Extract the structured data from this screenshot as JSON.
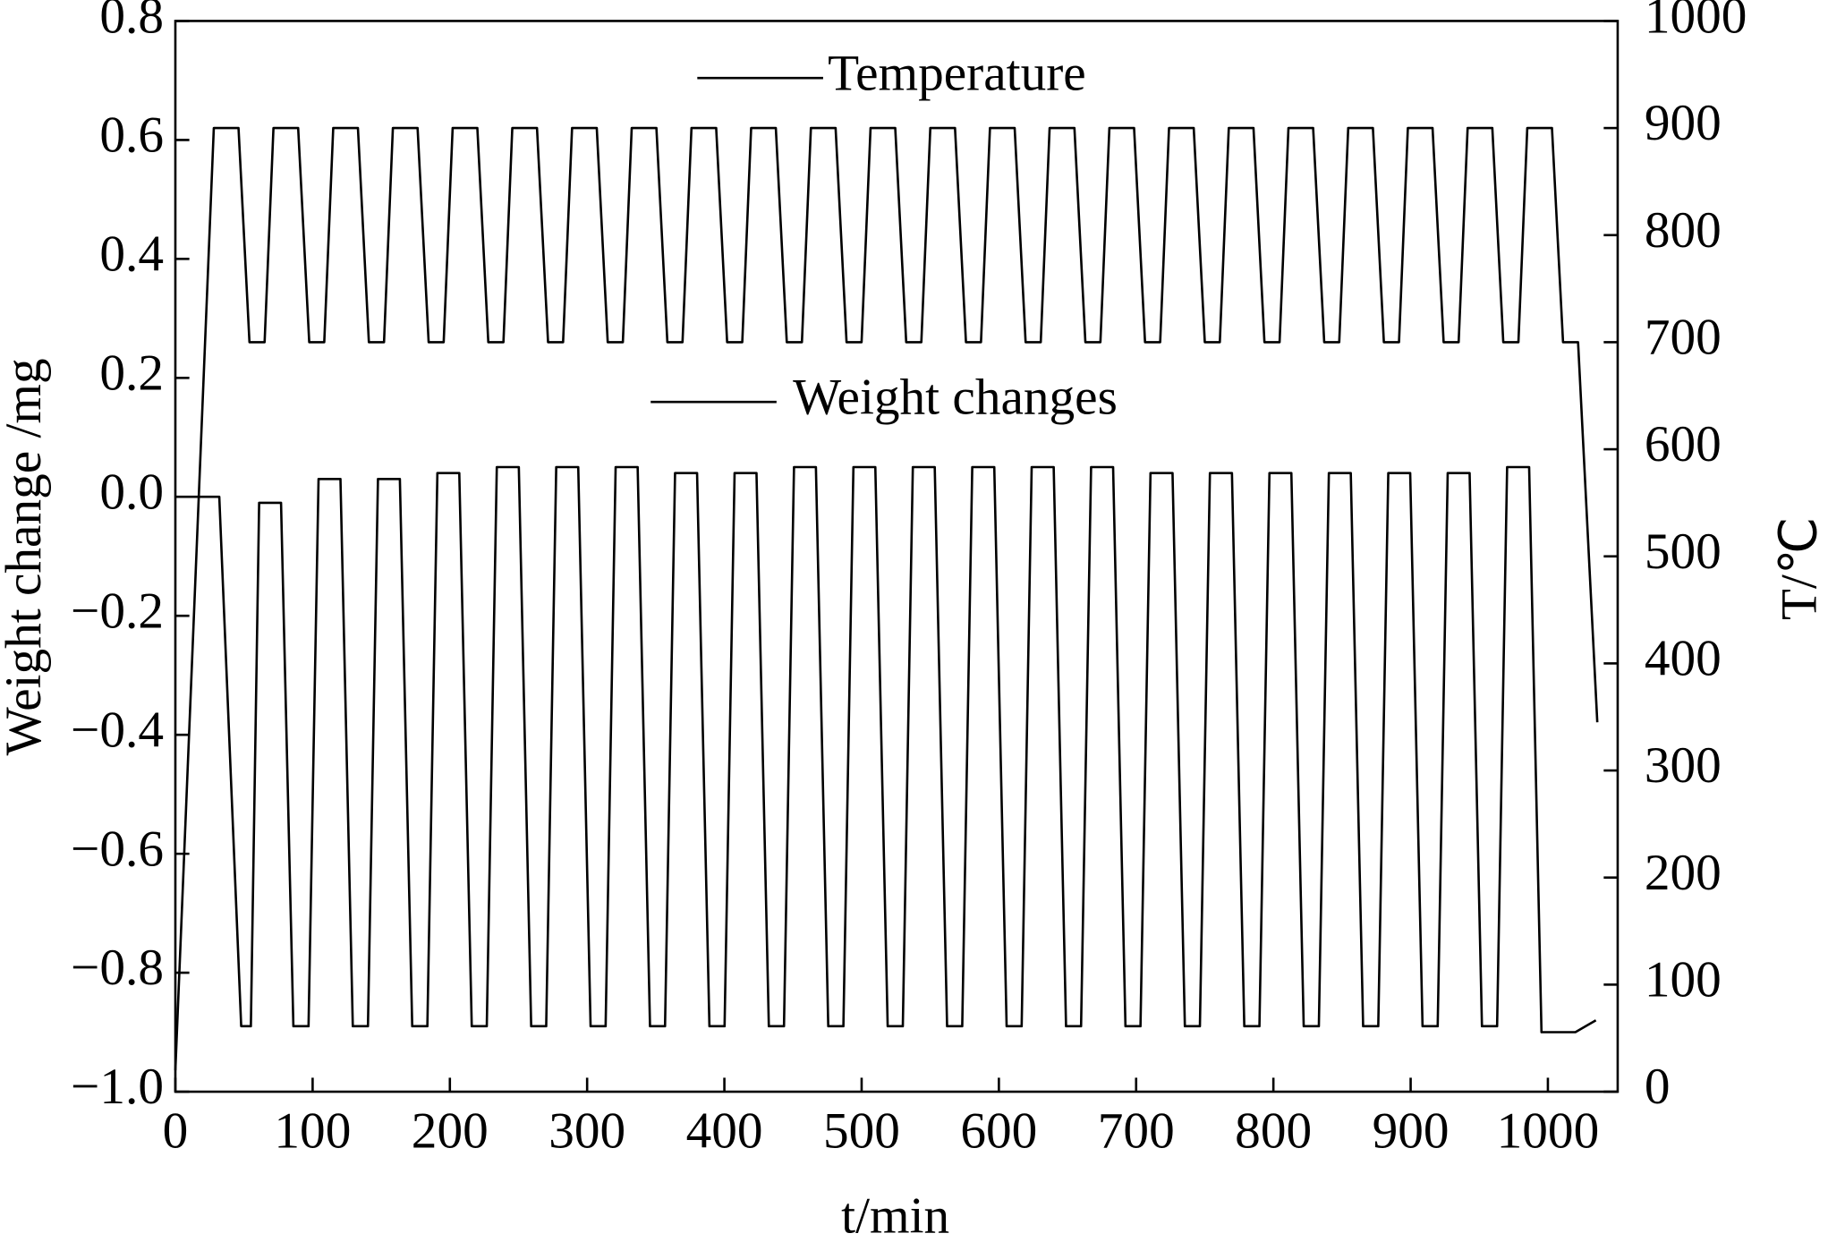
{
  "chart_data": {
    "type": "line",
    "xlabel": "t/min",
    "ylabel": "Weight change /mg",
    "y2label": "T/℃",
    "xlim": [
      0,
      1050
    ],
    "xticks": [
      0,
      100,
      200,
      300,
      400,
      500,
      600,
      700,
      800,
      900,
      1000
    ],
    "ylim": [
      -1.0,
      0.8
    ],
    "yticks": [
      {
        "value": -1.0,
        "label": "−1.0"
      },
      {
        "value": -0.8,
        "label": "−0.8"
      },
      {
        "value": -0.6,
        "label": "−0.6"
      },
      {
        "value": -0.4,
        "label": "−0.4"
      },
      {
        "value": -0.2,
        "label": "−0.2"
      },
      {
        "value": 0,
        "label": "0.0"
      },
      0.2,
      0.4,
      0.6,
      0.8
    ],
    "y2lim": [
      0,
      1000
    ],
    "y2ticks": [
      0,
      100,
      200,
      300,
      400,
      500,
      600,
      700,
      800,
      900,
      1000
    ],
    "grid": false,
    "series": [
      {
        "name": "Temperature",
        "color": "#000000",
        "axis": "y2",
        "x": [
          0,
          28,
          46,
          54,
          65,
          71.5,
          89.5,
          97.5,
          108.5,
          115,
          133,
          141,
          152,
          158.5,
          176.5,
          184.5,
          195.5,
          202,
          220,
          228,
          239,
          245.5,
          263.5,
          271.5,
          282.5,
          289,
          307,
          315,
          326,
          332.5,
          350.5,
          358.5,
          369.5,
          376,
          394,
          402,
          413,
          419.5,
          437.5,
          445.5,
          456.5,
          463,
          481,
          489,
          500,
          506.5,
          524.5,
          532.5,
          543.5,
          550,
          568,
          576,
          587,
          593.5,
          611.5,
          619.5,
          630.5,
          637,
          655,
          663,
          674,
          680.5,
          698.5,
          706.5,
          717.5,
          724,
          742,
          750,
          761,
          767.5,
          785.5,
          793.5,
          804.5,
          811,
          829,
          837,
          848,
          854.5,
          872.5,
          880.5,
          891.5,
          898,
          916,
          924,
          935,
          941.5,
          959.5,
          967.5,
          978.5,
          985,
          1003,
          1011,
          1022,
          1036
        ],
        "values": [
          20,
          900,
          900,
          700,
          700,
          900,
          900,
          700,
          700,
          900,
          900,
          700,
          700,
          900,
          900,
          700,
          700,
          900,
          900,
          700,
          700,
          900,
          900,
          700,
          700,
          900,
          900,
          700,
          700,
          900,
          900,
          700,
          700,
          900,
          900,
          700,
          700,
          900,
          900,
          700,
          700,
          900,
          900,
          700,
          700,
          900,
          900,
          700,
          700,
          900,
          900,
          700,
          700,
          900,
          900,
          700,
          700,
          900,
          900,
          700,
          700,
          900,
          900,
          700,
          700,
          900,
          900,
          700,
          700,
          900,
          900,
          700,
          700,
          900,
          900,
          700,
          700,
          900,
          900,
          700,
          700,
          900,
          900,
          700,
          700,
          900,
          900,
          700,
          700,
          900,
          900,
          700,
          700,
          345
        ]
      },
      {
        "name": "Weight changes",
        "color": "#000000",
        "axis": "y",
        "x": [
          0,
          32,
          48,
          55,
          61,
          77,
          86,
          97,
          104.3,
          120.3,
          129.3,
          140.3,
          147.6,
          163.6,
          172.6,
          183.6,
          190.9,
          206.9,
          215.9,
          226.9,
          234.2,
          250.2,
          259.2,
          270.2,
          277.5,
          293.5,
          302.5,
          313.5,
          320.8,
          336.8,
          345.8,
          356.8,
          364.1,
          380.1,
          389.1,
          400.1,
          407.4,
          423.4,
          432.4,
          443.4,
          450.7,
          466.7,
          475.7,
          486.7,
          494,
          510,
          519,
          530,
          537.3,
          553.3,
          562.3,
          573.3,
          580.6,
          596.6,
          605.6,
          616.6,
          623.9,
          639.9,
          648.9,
          659.9,
          667.2,
          683.2,
          692.2,
          703.2,
          710.5,
          726.5,
          735.5,
          746.5,
          753.8,
          769.8,
          778.8,
          789.8,
          797.1,
          813.1,
          822.1,
          833.1,
          840.4,
          856.4,
          865.4,
          876.4,
          883.7,
          899.7,
          908.7,
          919.7,
          927,
          943,
          952,
          963,
          970.3,
          986.3,
          995.3,
          1020,
          1035
        ],
        "values": [
          0,
          0,
          -0.89,
          -0.89,
          -0.01,
          -0.01,
          -0.89,
          -0.89,
          0.03,
          0.03,
          -0.89,
          -0.89,
          0.03,
          0.03,
          -0.89,
          -0.89,
          0.04,
          0.04,
          -0.89,
          -0.89,
          0.05,
          0.05,
          -0.89,
          -0.89,
          0.05,
          0.05,
          -0.89,
          -0.89,
          0.05,
          0.05,
          -0.89,
          -0.89,
          0.04,
          0.04,
          -0.89,
          -0.89,
          0.04,
          0.04,
          -0.89,
          -0.89,
          0.05,
          0.05,
          -0.89,
          -0.89,
          0.05,
          0.05,
          -0.89,
          -0.89,
          0.05,
          0.05,
          -0.89,
          -0.89,
          0.05,
          0.05,
          -0.89,
          -0.89,
          0.05,
          0.05,
          -0.89,
          -0.89,
          0.05,
          0.05,
          -0.89,
          -0.89,
          0.04,
          0.04,
          -0.89,
          -0.89,
          0.04,
          0.04,
          -0.89,
          -0.89,
          0.04,
          0.04,
          -0.89,
          -0.89,
          0.04,
          0.04,
          -0.89,
          -0.89,
          0.04,
          0.04,
          -0.89,
          -0.89,
          0.04,
          0.04,
          -0.89,
          -0.89,
          0.05,
          0.05,
          -0.9,
          -0.9,
          -0.88
        ]
      }
    ]
  }
}
